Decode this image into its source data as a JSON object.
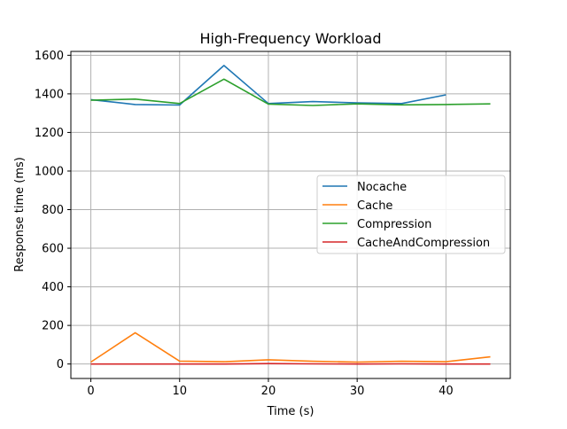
{
  "chart_data": {
    "type": "line",
    "title": "High-Frequency Workload",
    "xlabel": "Time (s)",
    "ylabel": "Response time (ms)",
    "xlim": [
      -2.25,
      47.25
    ],
    "ylim": [
      -75,
      1620
    ],
    "xticks": [
      0,
      10,
      20,
      30,
      40
    ],
    "yticks": [
      0,
      200,
      400,
      600,
      800,
      1000,
      1200,
      1400,
      1600
    ],
    "grid": true,
    "legend_position": "center-right",
    "series": [
      {
        "name": "Nocache",
        "color": "#1f77b4",
        "x": [
          0,
          5,
          10,
          15,
          20,
          25,
          30,
          35,
          40
        ],
        "y": [
          1370,
          1345,
          1342,
          1547,
          1350,
          1360,
          1353,
          1350,
          1395
        ]
      },
      {
        "name": "Cache",
        "color": "#ff7f0e",
        "x": [
          0,
          5,
          10,
          15,
          20,
          25,
          30,
          35,
          40,
          45
        ],
        "y": [
          10,
          162,
          15,
          12,
          22,
          14,
          10,
          14,
          12,
          37
        ]
      },
      {
        "name": "Compression",
        "color": "#2ca02c",
        "x": [
          0,
          5,
          10,
          15,
          20,
          25,
          30,
          35,
          40,
          45
        ],
        "y": [
          1367,
          1373,
          1350,
          1476,
          1347,
          1340,
          1348,
          1343,
          1345,
          1348
        ]
      },
      {
        "name": "CacheAndCompression",
        "color": "#d62728",
        "x": [
          0,
          5,
          10,
          15,
          20,
          25,
          30,
          35,
          40,
          45
        ],
        "y": [
          0,
          0,
          0,
          0,
          2,
          1,
          0,
          1,
          0,
          0
        ]
      }
    ]
  }
}
